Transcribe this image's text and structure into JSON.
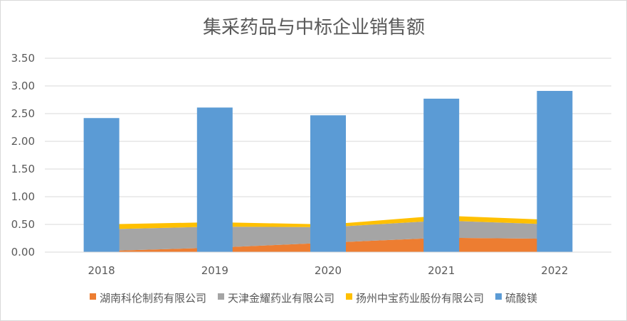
{
  "chart_data": {
    "type": "area",
    "title": "集采药品与中标企业销售额",
    "xlabel": "",
    "ylabel": "",
    "categories": [
      "2018",
      "2019",
      "2020",
      "2021",
      "2022"
    ],
    "ylim": [
      0,
      3.5
    ],
    "yticks": [
      "0.00",
      "0.50",
      "1.00",
      "1.50",
      "2.00",
      "2.50",
      "3.00",
      "3.50"
    ],
    "grid": true,
    "legend_position": "bottom",
    "series": [
      {
        "name": "湖南科伦制药有限公司",
        "chart": "stacked-area",
        "color": "#ED7D31",
        "values": [
          0.02,
          0.08,
          0.17,
          0.26,
          0.24
        ]
      },
      {
        "name": "天津金耀药业有限公司",
        "chart": "stacked-area",
        "color": "#A5A5A5",
        "values": [
          0.39,
          0.38,
          0.28,
          0.31,
          0.26
        ]
      },
      {
        "name": "扬州中宝药业股份有限公司",
        "chart": "stacked-area",
        "color": "#FFC000",
        "values": [
          0.09,
          0.08,
          0.05,
          0.09,
          0.08
        ]
      },
      {
        "name": "硫酸镁",
        "chart": "bar",
        "color": "#5B9BD5",
        "values": [
          2.42,
          2.61,
          2.47,
          2.77,
          2.91
        ]
      }
    ]
  }
}
